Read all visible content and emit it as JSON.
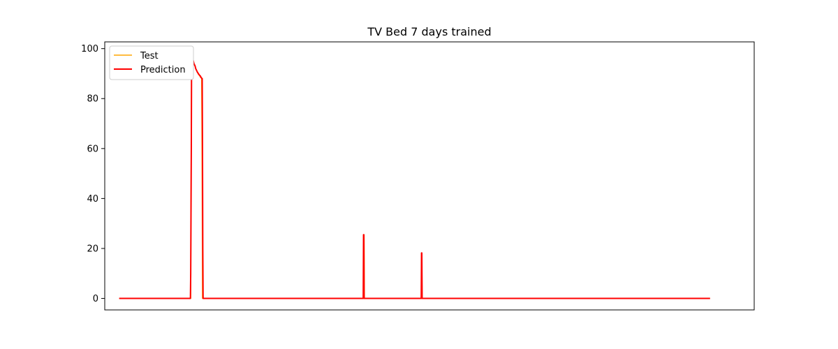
{
  "chart_data": {
    "type": "line",
    "title": "TV Bed 7 days trained",
    "xlabel": "",
    "ylabel": "",
    "ylim": [
      -4.6,
      102.7
    ],
    "xlim": [
      -49,
      2157
    ],
    "yticks": [
      0,
      20,
      40,
      60,
      80,
      100
    ],
    "x_ticks_visible": false,
    "grid": false,
    "legend": "top-left",
    "series": [
      {
        "name": "Test",
        "color": "#ffa500",
        "x": [
          0,
          243,
          244,
          246,
          248,
          250,
          252,
          254,
          256,
          258,
          260,
          262,
          264,
          266,
          268,
          270,
          272,
          274,
          276,
          278,
          280,
          281,
          282,
          283,
          284,
          285,
          286,
          830,
          831,
          832,
          833,
          1026,
          1027,
          1028,
          1029,
          2007
        ],
        "values": [
          0,
          0,
          40,
          97,
          98,
          96,
          95,
          94,
          93.5,
          93,
          92,
          91.5,
          91,
          90.5,
          90,
          89.5,
          89.5,
          89,
          88.5,
          88.5,
          88,
          70,
          40,
          0,
          0,
          0,
          0,
          0,
          25.5,
          25.5,
          0,
          0,
          18.2,
          18.2,
          0,
          0
        ]
      },
      {
        "name": "Prediction",
        "color": "#ff0000",
        "x": [
          0,
          242,
          243,
          245,
          246,
          247,
          248,
          250,
          252,
          254,
          256,
          258,
          260,
          262,
          264,
          266,
          268,
          270,
          272,
          274,
          276,
          278,
          280,
          282,
          283,
          284,
          285,
          286,
          287,
          288,
          829,
          830,
          831,
          832,
          1026,
          1027,
          1028,
          1029,
          2007
        ],
        "values": [
          0,
          0,
          10,
          60,
          97,
          98,
          97.5,
          96,
          95,
          94,
          93.5,
          93,
          92,
          91.5,
          91,
          90.5,
          90.2,
          89.8,
          89.5,
          89.2,
          89,
          88.5,
          88.2,
          88,
          60,
          20,
          0,
          0,
          0,
          0,
          0,
          25.5,
          25.5,
          0,
          0,
          18.2,
          18.2,
          0,
          0
        ]
      }
    ]
  }
}
